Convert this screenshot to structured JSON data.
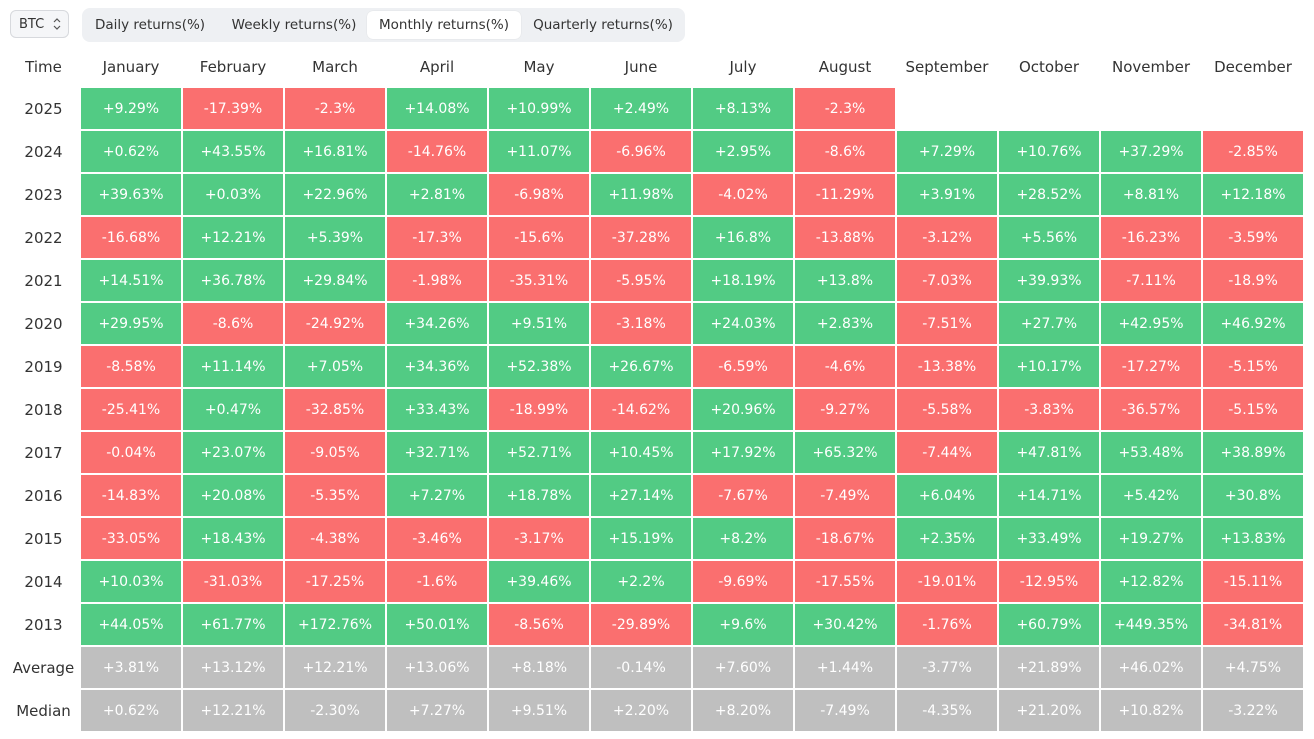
{
  "asset_selector": {
    "label": "BTC"
  },
  "tabs": [
    {
      "label": "Daily returns(%)",
      "active": false
    },
    {
      "label": "Weekly returns(%)",
      "active": false
    },
    {
      "label": "Monthly returns(%)",
      "active": true
    },
    {
      "label": "Quarterly returns(%)",
      "active": false
    }
  ],
  "colors": {
    "positive": "#52cb84",
    "negative": "#fa6f6f",
    "stat": "#bfbfbf"
  },
  "table": {
    "time_header": "Time",
    "months": [
      "January",
      "February",
      "March",
      "April",
      "May",
      "June",
      "July",
      "August",
      "September",
      "October",
      "November",
      "December"
    ],
    "rows": [
      {
        "label": "2025",
        "values": [
          "+9.29%",
          "-17.39%",
          "-2.3%",
          "+14.08%",
          "+10.99%",
          "+2.49%",
          "+8.13%",
          "-2.3%",
          "",
          "",
          "",
          ""
        ]
      },
      {
        "label": "2024",
        "values": [
          "+0.62%",
          "+43.55%",
          "+16.81%",
          "-14.76%",
          "+11.07%",
          "-6.96%",
          "+2.95%",
          "-8.6%",
          "+7.29%",
          "+10.76%",
          "+37.29%",
          "-2.85%"
        ]
      },
      {
        "label": "2023",
        "values": [
          "+39.63%",
          "+0.03%",
          "+22.96%",
          "+2.81%",
          "-6.98%",
          "+11.98%",
          "-4.02%",
          "-11.29%",
          "+3.91%",
          "+28.52%",
          "+8.81%",
          "+12.18%"
        ]
      },
      {
        "label": "2022",
        "values": [
          "-16.68%",
          "+12.21%",
          "+5.39%",
          "-17.3%",
          "-15.6%",
          "-37.28%",
          "+16.8%",
          "-13.88%",
          "-3.12%",
          "+5.56%",
          "-16.23%",
          "-3.59%"
        ]
      },
      {
        "label": "2021",
        "values": [
          "+14.51%",
          "+36.78%",
          "+29.84%",
          "-1.98%",
          "-35.31%",
          "-5.95%",
          "+18.19%",
          "+13.8%",
          "-7.03%",
          "+39.93%",
          "-7.11%",
          "-18.9%"
        ]
      },
      {
        "label": "2020",
        "values": [
          "+29.95%",
          "-8.6%",
          "-24.92%",
          "+34.26%",
          "+9.51%",
          "-3.18%",
          "+24.03%",
          "+2.83%",
          "-7.51%",
          "+27.7%",
          "+42.95%",
          "+46.92%"
        ]
      },
      {
        "label": "2019",
        "values": [
          "-8.58%",
          "+11.14%",
          "+7.05%",
          "+34.36%",
          "+52.38%",
          "+26.67%",
          "-6.59%",
          "-4.6%",
          "-13.38%",
          "+10.17%",
          "-17.27%",
          "-5.15%"
        ]
      },
      {
        "label": "2018",
        "values": [
          "-25.41%",
          "+0.47%",
          "-32.85%",
          "+33.43%",
          "-18.99%",
          "-14.62%",
          "+20.96%",
          "-9.27%",
          "-5.58%",
          "-3.83%",
          "-36.57%",
          "-5.15%"
        ]
      },
      {
        "label": "2017",
        "values": [
          "-0.04%",
          "+23.07%",
          "-9.05%",
          "+32.71%",
          "+52.71%",
          "+10.45%",
          "+17.92%",
          "+65.32%",
          "-7.44%",
          "+47.81%",
          "+53.48%",
          "+38.89%"
        ]
      },
      {
        "label": "2016",
        "values": [
          "-14.83%",
          "+20.08%",
          "-5.35%",
          "+7.27%",
          "+18.78%",
          "+27.14%",
          "-7.67%",
          "-7.49%",
          "+6.04%",
          "+14.71%",
          "+5.42%",
          "+30.8%"
        ]
      },
      {
        "label": "2015",
        "values": [
          "-33.05%",
          "+18.43%",
          "-4.38%",
          "-3.46%",
          "-3.17%",
          "+15.19%",
          "+8.2%",
          "-18.67%",
          "+2.35%",
          "+33.49%",
          "+19.27%",
          "+13.83%"
        ]
      },
      {
        "label": "2014",
        "values": [
          "+10.03%",
          "-31.03%",
          "-17.25%",
          "-1.6%",
          "+39.46%",
          "+2.2%",
          "-9.69%",
          "-17.55%",
          "-19.01%",
          "-12.95%",
          "+12.82%",
          "-15.11%"
        ]
      },
      {
        "label": "2013",
        "values": [
          "+44.05%",
          "+61.77%",
          "+172.76%",
          "+50.01%",
          "-8.56%",
          "-29.89%",
          "+9.6%",
          "+30.42%",
          "-1.76%",
          "+60.79%",
          "+449.35%",
          "-34.81%"
        ]
      }
    ],
    "summary_rows": [
      {
        "label": "Average",
        "values": [
          "+3.81%",
          "+13.12%",
          "+12.21%",
          "+13.06%",
          "+8.18%",
          "-0.14%",
          "+7.60%",
          "+1.44%",
          "-3.77%",
          "+21.89%",
          "+46.02%",
          "+4.75%"
        ]
      },
      {
        "label": "Median",
        "values": [
          "+0.62%",
          "+12.21%",
          "-2.30%",
          "+7.27%",
          "+9.51%",
          "+2.20%",
          "+8.20%",
          "-7.49%",
          "-4.35%",
          "+21.20%",
          "+10.82%",
          "-3.22%"
        ]
      }
    ]
  }
}
